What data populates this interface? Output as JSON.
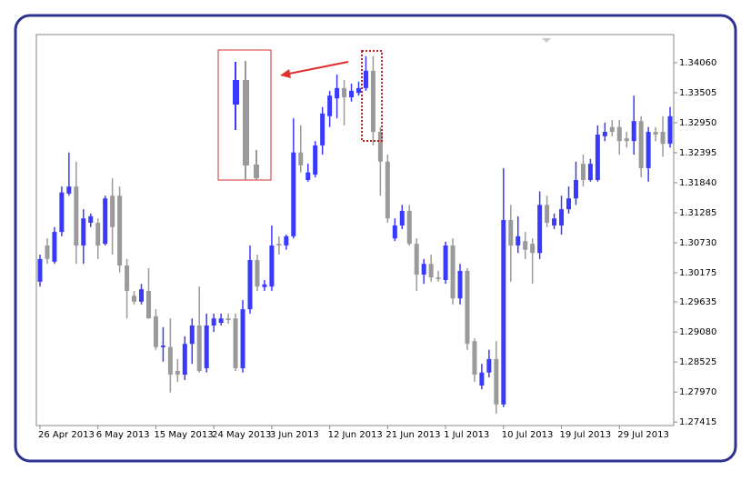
{
  "chart_data": {
    "type": "candlestick",
    "categories": [
      "26 Apr 2013",
      null,
      null,
      null,
      null,
      null,
      null,
      null,
      "6 May 2013",
      null,
      null,
      null,
      null,
      null,
      null,
      null,
      "15 May 2013",
      null,
      null,
      null,
      null,
      null,
      null,
      null,
      "24 May 2013",
      null,
      null,
      null,
      null,
      null,
      null,
      null,
      "3 Jun 2013",
      null,
      null,
      null,
      null,
      null,
      null,
      null,
      "12 Jun 2013",
      null,
      null,
      null,
      null,
      null,
      null,
      null,
      "21 Jun 2013",
      null,
      null,
      null,
      null,
      null,
      null,
      null,
      "1 Jul 2013",
      null,
      null,
      null,
      null,
      null,
      null,
      null,
      "10 Jul 2013",
      null,
      null,
      null,
      null,
      null,
      null,
      null,
      "19 Jul 2013",
      null,
      null,
      null,
      null,
      null,
      null,
      null,
      "29 Jul 2013",
      null,
      null,
      null,
      null,
      null,
      null,
      null
    ],
    "open": [
      1.3001,
      1.3068,
      1.3038,
      1.3093,
      1.3164,
      1.3177,
      1.3068,
      1.311,
      1.311,
      1.3071,
      1.316,
      1.316,
      1.3031,
      1.2975,
      1.2964,
      1.2984,
      1.2937,
      1.288,
      1.288,
      1.2836,
      1.2829,
      1.2886,
      1.292,
      1.2841,
      1.292,
      1.2925,
      1.2933,
      1.2933,
      1.2841,
      1.295,
      1.3041,
      1.2991,
      1.2992,
      1.3071,
      1.3068,
      1.3085,
      1.324,
      1.3189,
      1.3199,
      1.3253,
      1.3307,
      1.334,
      1.3359,
      1.3342,
      1.335,
      1.3359,
      1.3391,
      1.3278,
      1.3223,
      1.3081,
      1.3105,
      1.3132,
      1.3071,
      1.3014,
      1.3034,
      1.3009,
      1.3004,
      1.3068,
      1.297,
      1.3021,
      1.2891,
      1.2809,
      1.2833,
      1.2858,
      1.2774,
      1.3115,
      1.3068,
      1.3076,
      1.3071,
      1.3054,
      1.3143,
      1.3105,
      1.3105,
      1.3135,
      1.3155,
      1.3219,
      1.3189,
      1.3189,
      1.327,
      1.3287,
      1.3287,
      1.3266,
      1.3261,
      1.3298,
      1.3211,
      1.3278,
      1.3278,
      1.3256
    ],
    "high": [
      1.3051,
      1.3081,
      1.3102,
      1.3177,
      1.324,
      1.3223,
      1.3135,
      1.3127,
      1.3118,
      1.316,
      1.3192,
      1.3177,
      1.3043,
      1.2984,
      1.2997,
      1.3026,
      1.295,
      1.2917,
      1.2933,
      1.2858,
      1.29,
      1.2933,
      1.2992,
      1.2942,
      1.2942,
      1.2942,
      1.2942,
      1.2942,
      1.2967,
      1.3068,
      1.3051,
      1.3004,
      1.3105,
      1.3085,
      1.3088,
      1.3303,
      1.329,
      1.3219,
      1.3261,
      1.3324,
      1.3354,
      1.3384,
      1.3374,
      1.3367,
      1.3371,
      1.3418,
      1.3418,
      1.3287,
      1.3236,
      1.3118,
      1.3143,
      1.3143,
      1.3081,
      1.3043,
      1.3051,
      1.3021,
      1.3075,
      1.3081,
      1.3034,
      1.3026,
      1.2896,
      1.2849,
      1.2875,
      1.2891,
      1.3211,
      1.3143,
      1.3122,
      1.3093,
      1.3081,
      1.3168,
      1.316,
      1.3127,
      1.316,
      1.3177,
      1.3223,
      1.3236,
      1.3228,
      1.329,
      1.3295,
      1.33,
      1.33,
      1.3278,
      1.3345,
      1.3307,
      1.3287,
      1.3287,
      1.3307,
      1.3324
    ],
    "low": [
      1.2992,
      1.3034,
      1.3034,
      1.3085,
      1.316,
      1.3034,
      1.3034,
      1.3102,
      1.3043,
      1.3068,
      1.3051,
      1.3018,
      1.2933,
      1.2959,
      1.2959,
      1.2933,
      1.2875,
      1.2853,
      1.2796,
      1.2816,
      1.2819,
      1.2849,
      1.2833,
      1.2833,
      1.2908,
      1.292,
      1.2923,
      1.2836,
      1.2833,
      1.2942,
      1.2984,
      1.2984,
      1.2984,
      1.3051,
      1.306,
      1.3081,
      1.3203,
      1.3186,
      1.3194,
      1.3236,
      1.3287,
      1.3303,
      1.329,
      1.3334,
      1.3345,
      1.3354,
      1.3253,
      1.316,
      1.311,
      1.3076,
      1.3098,
      1.3068,
      1.2984,
      1.2997,
      1.3001,
      1.3001,
      1.2997,
      1.2959,
      1.2959,
      1.2875,
      1.2816,
      1.2802,
      1.2824,
      1.2757,
      1.2769,
      1.3001,
      1.3054,
      1.3043,
      1.2997,
      1.3043,
      1.3102,
      1.3098,
      1.3088,
      1.3127,
      1.3143,
      1.3177,
      1.3186,
      1.3186,
      1.3261,
      1.327,
      1.3236,
      1.3249,
      1.3236,
      1.3194,
      1.3186,
      1.3261,
      1.3232,
      1.3249
    ],
    "close": [
      1.3043,
      1.3043,
      1.3093,
      1.3166,
      1.3177,
      1.3068,
      1.3118,
      1.3122,
      1.3068,
      1.3155,
      1.3102,
      1.3031,
      1.2984,
      1.2964,
      1.2987,
      1.2933,
      1.288,
      1.2883,
      1.2829,
      1.2829,
      1.2886,
      1.292,
      1.2836,
      1.292,
      1.2933,
      1.2933,
      1.293,
      1.2841,
      1.295,
      1.3041,
      1.2992,
      1.2996,
      1.3068,
      1.3068,
      1.3085,
      1.324,
      1.3216,
      1.3203,
      1.3253,
      1.3312,
      1.3345,
      1.3359,
      1.3342,
      1.3354,
      1.3359,
      1.3391,
      1.3278,
      1.3223,
      1.3118,
      1.3105,
      1.3132,
      1.3071,
      1.3014,
      1.3034,
      1.3009,
      1.3006,
      1.3068,
      1.297,
      1.3021,
      1.2886,
      1.2829,
      1.2833,
      1.2858,
      1.2774,
      1.3115,
      1.3068,
      1.3085,
      1.306,
      1.3054,
      1.3143,
      1.311,
      1.3118,
      1.3135,
      1.3155,
      1.3189,
      1.3189,
      1.3219,
      1.3273,
      1.3278,
      1.3278,
      1.3261,
      1.3261,
      1.3298,
      1.3211,
      1.3278,
      1.3273,
      1.3256,
      1.3307
    ],
    "ylim": [
      1.2735,
      1.3458
    ],
    "yticks": [
      1.27415,
      {
        "value": 1.2797,
        "label": "1.27970"
      },
      1.28525,
      {
        "value": 1.2908,
        "label": "1.29080"
      },
      1.29635,
      1.30175,
      {
        "value": 1.3073,
        "label": "1.30730"
      },
      1.31285,
      {
        "value": 1.3184,
        "label": "1.31840"
      },
      1.32395,
      {
        "value": 1.3295,
        "label": "1.32950"
      },
      1.33505,
      {
        "value": 1.3406,
        "label": "1.34060"
      }
    ],
    "up_color": "#3a3aff",
    "down_color": "#9a9a9a"
  }
}
